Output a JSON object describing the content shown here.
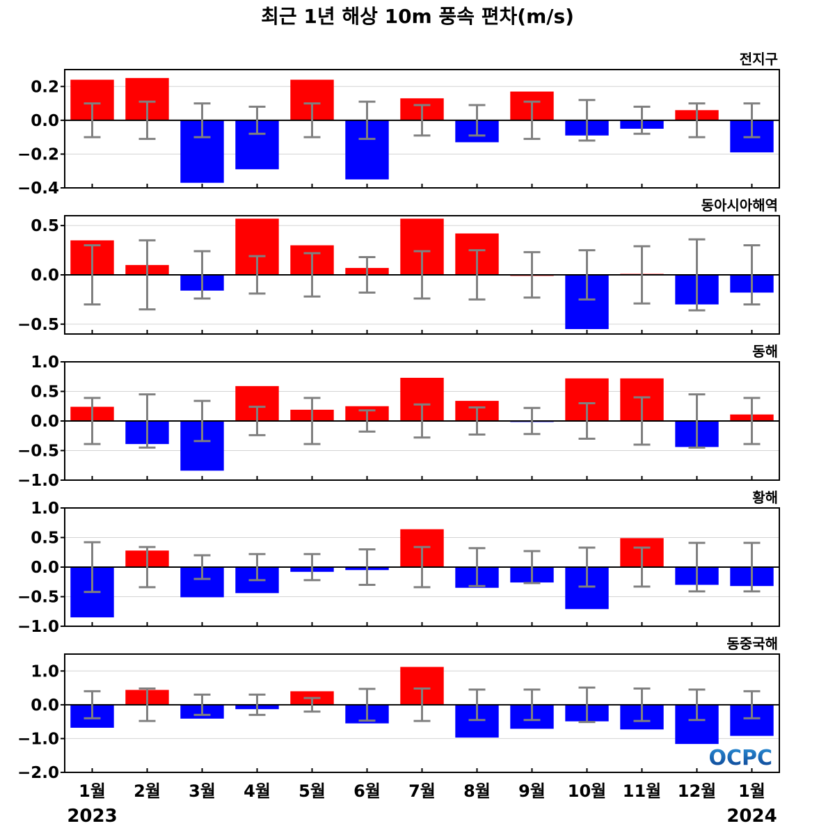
{
  "title": "최근 1년 해상 10m 풍속 편차(m/s)",
  "logo": "OCPC",
  "colors": {
    "positive": "#ff0000",
    "negative": "#0000ff",
    "errorbar": "#808080",
    "grid": "#d3d3d3"
  },
  "chart_data": [
    {
      "type": "bar",
      "panel_label": "전지구",
      "categories": [
        "1월",
        "2월",
        "3월",
        "4월",
        "5월",
        "6월",
        "7월",
        "8월",
        "9월",
        "10월",
        "11월",
        "12월",
        "1월"
      ],
      "year_labels": [
        "2023",
        "2024"
      ],
      "values": [
        0.24,
        0.25,
        -0.37,
        -0.29,
        0.24,
        -0.35,
        0.13,
        -0.13,
        0.17,
        -0.09,
        -0.05,
        0.06,
        -0.19
      ],
      "error": [
        0.1,
        0.11,
        0.1,
        0.08,
        0.1,
        0.11,
        0.09,
        0.09,
        0.11,
        0.12,
        0.08,
        0.1,
        0.1
      ],
      "ylim": [
        -0.4,
        0.3
      ],
      "yticks": [
        "0.2",
        "0.0",
        "−0.2",
        "−0.4"
      ],
      "ytick_values": [
        0.2,
        0.0,
        -0.2,
        -0.4
      ],
      "grid": true
    },
    {
      "type": "bar",
      "panel_label": "동아시아해역",
      "categories": [
        "1월",
        "2월",
        "3월",
        "4월",
        "5월",
        "6월",
        "7월",
        "8월",
        "9월",
        "10월",
        "11월",
        "12월",
        "1월"
      ],
      "values": [
        0.35,
        0.1,
        -0.16,
        0.57,
        0.3,
        0.07,
        0.57,
        0.42,
        0.0,
        -0.55,
        0.01,
        -0.3,
        -0.18
      ],
      "error": [
        0.3,
        0.35,
        0.24,
        0.19,
        0.22,
        0.18,
        0.24,
        0.25,
        0.23,
        0.25,
        0.29,
        0.36,
        0.3
      ],
      "ylim": [
        -0.6,
        0.6
      ],
      "yticks": [
        "0.5",
        "0.0",
        "−0.5"
      ],
      "ytick_values": [
        0.5,
        0.0,
        -0.5
      ],
      "grid": true
    },
    {
      "type": "bar",
      "panel_label": "동해",
      "categories": [
        "1월",
        "2월",
        "3월",
        "4월",
        "5월",
        "6월",
        "7월",
        "8월",
        "9월",
        "10월",
        "11월",
        "12월",
        "1월"
      ],
      "values": [
        0.24,
        -0.39,
        -0.84,
        0.59,
        0.19,
        0.25,
        0.73,
        0.34,
        -0.01,
        0.72,
        0.72,
        -0.44,
        0.11
      ],
      "error": [
        0.39,
        0.45,
        0.34,
        0.24,
        0.39,
        0.18,
        0.28,
        0.23,
        0.22,
        0.3,
        0.4,
        0.45,
        0.39
      ],
      "ylim": [
        -1.0,
        1.0
      ],
      "yticks": [
        "1.0",
        "0.5",
        "0.0",
        "−0.5",
        "−1.0"
      ],
      "ytick_values": [
        1.0,
        0.5,
        0.0,
        -0.5,
        -1.0
      ],
      "grid": true
    },
    {
      "type": "bar",
      "panel_label": "황해",
      "categories": [
        "1월",
        "2월",
        "3월",
        "4월",
        "5월",
        "6월",
        "7월",
        "8월",
        "9월",
        "10월",
        "11월",
        "12월",
        "1월"
      ],
      "values": [
        -0.85,
        0.28,
        -0.51,
        -0.44,
        -0.08,
        -0.05,
        0.64,
        -0.35,
        -0.26,
        -0.71,
        0.49,
        -0.3,
        -0.32
      ],
      "error": [
        0.42,
        0.34,
        0.2,
        0.22,
        0.22,
        0.3,
        0.34,
        0.32,
        0.27,
        0.33,
        0.33,
        0.41,
        0.41
      ],
      "ylim": [
        -1.0,
        1.0
      ],
      "yticks": [
        "1.0",
        "0.5",
        "0.0",
        "−0.5",
        "−1.0"
      ],
      "ytick_values": [
        1.0,
        0.5,
        0.0,
        -0.5,
        -1.0
      ],
      "grid": true
    },
    {
      "type": "bar",
      "panel_label": "동중국해",
      "categories": [
        "1월",
        "2월",
        "3월",
        "4월",
        "5월",
        "6월",
        "7월",
        "8월",
        "9월",
        "10월",
        "11월",
        "12월",
        "1월"
      ],
      "values": [
        -0.68,
        0.44,
        -0.41,
        -0.13,
        0.4,
        -0.55,
        1.12,
        -0.97,
        -0.71,
        -0.49,
        -0.73,
        -1.16,
        -0.92
      ],
      "error": [
        0.4,
        0.48,
        0.3,
        0.3,
        0.2,
        0.47,
        0.48,
        0.45,
        0.45,
        0.51,
        0.48,
        0.45,
        0.4
      ],
      "ylim": [
        -2.0,
        1.5
      ],
      "yticks": [
        "1.0",
        "0.0",
        "−1.0",
        "−2.0"
      ],
      "ytick_values": [
        1.0,
        0.0,
        -1.0,
        -2.0
      ],
      "grid": true
    }
  ]
}
